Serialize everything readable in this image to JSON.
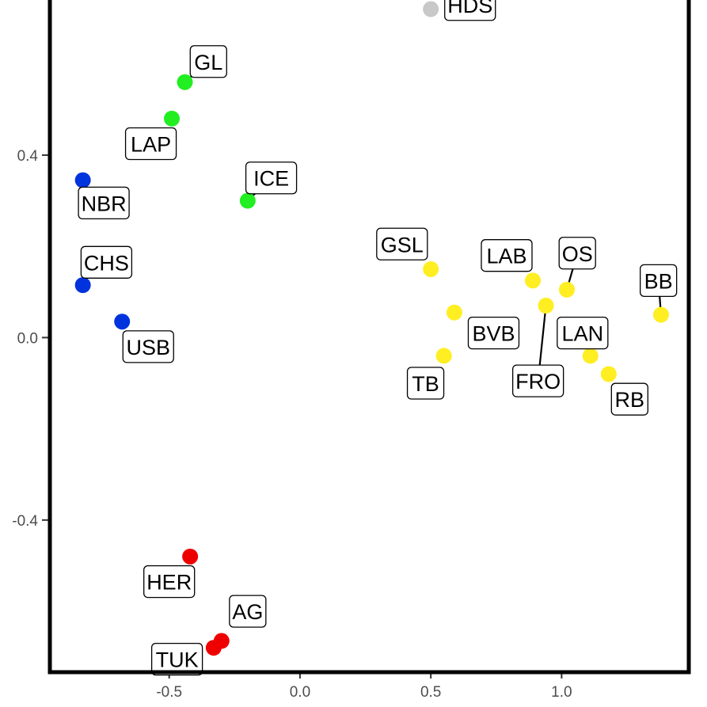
{
  "chart_data": {
    "type": "scatter",
    "title": "",
    "xlabel": "",
    "ylabel": "",
    "xlim": [
      -0.95,
      1.48
    ],
    "ylim": [
      -0.73,
      0.74
    ],
    "grid": false,
    "legend": "none",
    "x_ticks": [
      {
        "value": -0.5,
        "label": "-0.5"
      },
      {
        "value": 0.0,
        "label": "0.0"
      },
      {
        "value": 0.5,
        "label": "0.5"
      },
      {
        "value": 1.0,
        "label": "1.0"
      }
    ],
    "y_ticks": [
      {
        "value": 0.4,
        "label": "0.4"
      },
      {
        "value": 0.0,
        "label": "0.0"
      },
      {
        "value": -0.4,
        "label": "-0.4"
      }
    ],
    "colors": {
      "blue": "#0033dd",
      "green": "#22ee22",
      "yellow": "#ffee22",
      "red": "#ee0000",
      "grey": "#c8c8c8"
    },
    "points": [
      {
        "label": "HDS",
        "x": 0.5,
        "y": 0.72,
        "color": "grey",
        "label_x": 0.65,
        "label_y": 0.73,
        "leader": false
      },
      {
        "label": "GL",
        "x": -0.44,
        "y": 0.56,
        "color": "green",
        "label_x": -0.35,
        "label_y": 0.605,
        "leader": true
      },
      {
        "label": "LAP",
        "x": -0.49,
        "y": 0.48,
        "color": "green",
        "label_x": -0.57,
        "label_y": 0.425,
        "leader": false
      },
      {
        "label": "ICE",
        "x": -0.2,
        "y": 0.3,
        "color": "green",
        "label_x": -0.11,
        "label_y": 0.35,
        "leader": true
      },
      {
        "label": "NBR",
        "x": -0.83,
        "y": 0.345,
        "color": "blue",
        "label_x": -0.75,
        "label_y": 0.295,
        "leader": false
      },
      {
        "label": "CHS",
        "x": -0.83,
        "y": 0.115,
        "color": "blue",
        "label_x": -0.74,
        "label_y": 0.165,
        "leader": false
      },
      {
        "label": "USB",
        "x": -0.68,
        "y": 0.035,
        "color": "blue",
        "label_x": -0.58,
        "label_y": -0.02,
        "leader": false
      },
      {
        "label": "GSL",
        "x": 0.5,
        "y": 0.15,
        "color": "yellow",
        "label_x": 0.39,
        "label_y": 0.205,
        "leader": false
      },
      {
        "label": "LAB",
        "x": 0.89,
        "y": 0.125,
        "color": "yellow",
        "label_x": 0.79,
        "label_y": 0.18,
        "leader": false
      },
      {
        "label": "OS",
        "x": 1.02,
        "y": 0.105,
        "color": "yellow",
        "label_x": 1.06,
        "label_y": 0.185,
        "leader": true
      },
      {
        "label": "BB",
        "x": 1.38,
        "y": 0.05,
        "color": "yellow",
        "label_x": 1.37,
        "label_y": 0.125,
        "leader": true
      },
      {
        "label": "BVB",
        "x": 0.59,
        "y": 0.055,
        "color": "yellow",
        "label_x": 0.74,
        "label_y": 0.01,
        "leader": false
      },
      {
        "label": "LAN",
        "x": 1.11,
        "y": -0.04,
        "color": "yellow",
        "label_x": 1.08,
        "label_y": 0.01,
        "leader": false
      },
      {
        "label": "FRO",
        "x": 0.94,
        "y": 0.07,
        "color": "yellow",
        "label_x": 0.91,
        "label_y": -0.095,
        "leader": true
      },
      {
        "label": "TB",
        "x": 0.55,
        "y": -0.04,
        "color": "yellow",
        "label_x": 0.48,
        "label_y": -0.1,
        "leader": false
      },
      {
        "label": "RB",
        "x": 1.18,
        "y": -0.08,
        "color": "yellow",
        "label_x": 1.26,
        "label_y": -0.135,
        "leader": false
      },
      {
        "label": "HER",
        "x": -0.42,
        "y": -0.48,
        "color": "red",
        "label_x": -0.5,
        "label_y": -0.535,
        "leader": false
      },
      {
        "label": "AG",
        "x": -0.3,
        "y": -0.665,
        "color": "red",
        "label_x": -0.2,
        "label_y": -0.6,
        "leader": false
      },
      {
        "label": "TUK",
        "x": -0.33,
        "y": -0.68,
        "color": "red",
        "label_x": -0.47,
        "label_y": -0.705,
        "leader": false
      }
    ]
  }
}
